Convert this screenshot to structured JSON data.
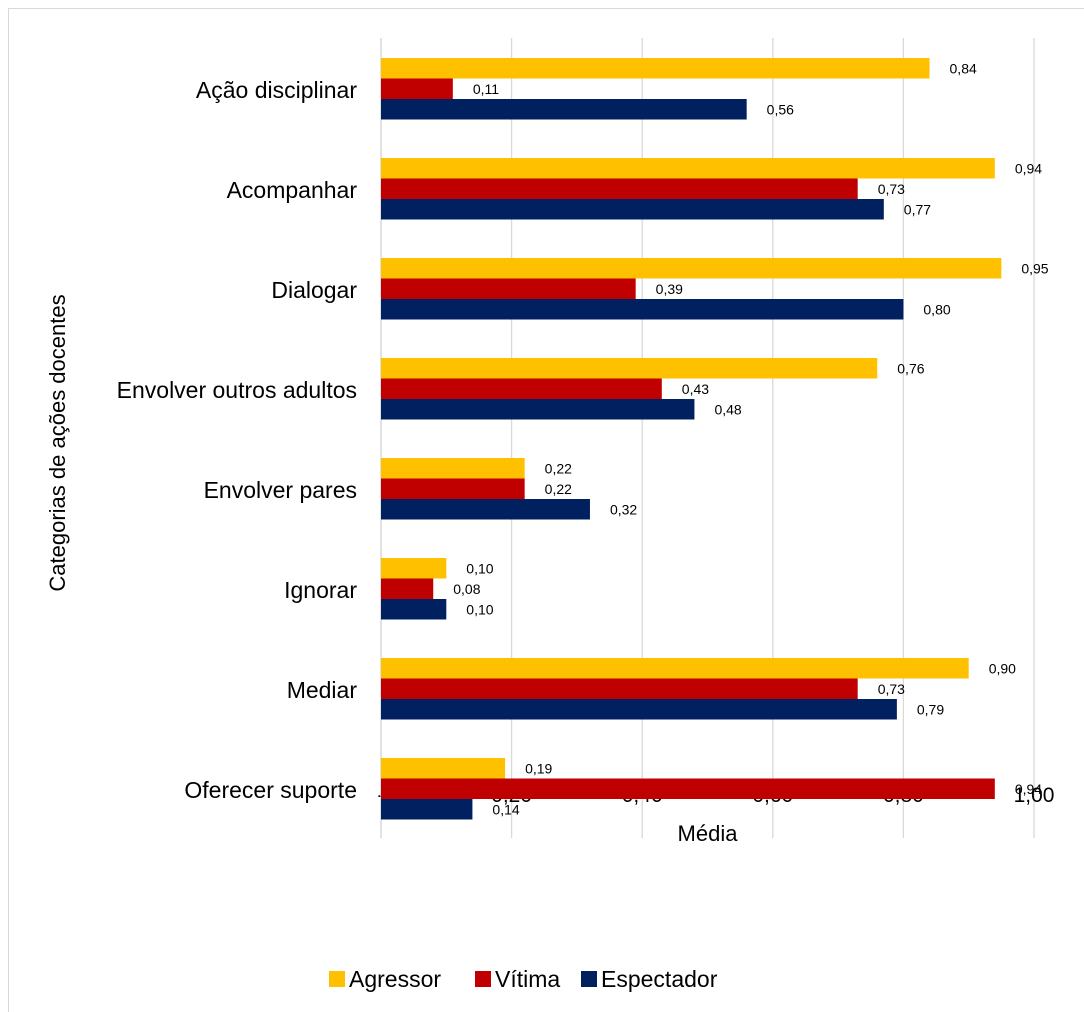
{
  "chart_data": {
    "type": "bar",
    "orientation": "horizontal",
    "categories": [
      "Ação disciplinar",
      "Acompanhar",
      "Dialogar",
      "Envolver outros adultos",
      "Envolver pares",
      "Ignorar",
      "Mediar",
      "Oferecer suporte"
    ],
    "series": [
      {
        "name": "Agressor",
        "color": "#FFC000",
        "values": [
          0.84,
          0.94,
          0.95,
          0.76,
          0.22,
          0.1,
          0.9,
          0.19
        ],
        "labels": [
          "0,84",
          "0,94",
          "0,95",
          "0,76",
          "0,22",
          "0,10",
          "0,90",
          "0,19"
        ]
      },
      {
        "name": "Vítima",
        "color": "#C00000",
        "values": [
          0.11,
          0.73,
          0.39,
          0.43,
          0.22,
          0.08,
          0.73,
          0.94
        ],
        "labels": [
          "0,11",
          "0,73",
          "0,39",
          "0,43",
          "0,22",
          "0,08",
          "0,73",
          "0,94"
        ]
      },
      {
        "name": "Espectador",
        "color": "#002060",
        "values": [
          0.56,
          0.77,
          0.8,
          0.48,
          0.32,
          0.1,
          0.79,
          0.14
        ],
        "labels": [
          "0,56",
          "0,77",
          "0,80",
          "0,48",
          "0,32",
          "0,10",
          "0,79",
          "0,14"
        ]
      }
    ],
    "xlabel": "Média",
    "ylabel": "Categorias de ações docentes",
    "xlim": [
      0,
      1.0
    ],
    "xticks": [
      0,
      0.2,
      0.4,
      0.6,
      0.8,
      1.0
    ],
    "xtick_labels": [
      "-",
      "0,20",
      "0,40",
      "0,60",
      "0,80",
      "1,00"
    ],
    "grid": "vertical",
    "legend_position": "bottom"
  }
}
